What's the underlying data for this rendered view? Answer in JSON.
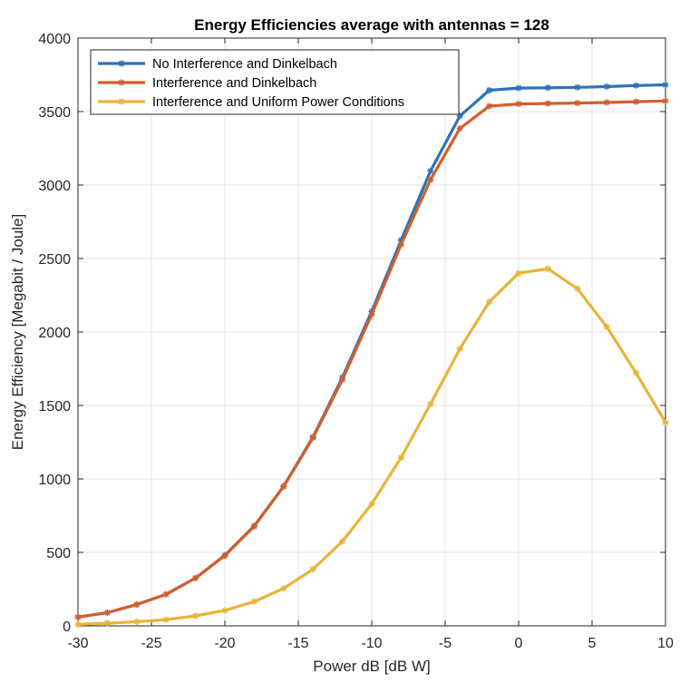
{
  "chart_data": {
    "type": "line",
    "title": "Energy Efficiencies average with antennas = 128",
    "xlabel": "Power dB [dB W]",
    "ylabel": "Energy Efficiency [Megabit / Joule]",
    "xlim": [
      -30,
      10
    ],
    "ylim": [
      0,
      4000
    ],
    "xticks": [
      -30,
      -25,
      -20,
      -15,
      -10,
      -5,
      0,
      5,
      10
    ],
    "yticks": [
      0,
      500,
      1000,
      1500,
      2000,
      2500,
      3000,
      3500,
      4000
    ],
    "grid": true,
    "legend_position": "top-left",
    "x": [
      -30,
      -28,
      -26,
      -24,
      -22,
      -20,
      -18,
      -16,
      -14,
      -12,
      -10,
      -8,
      -6,
      -4,
      -2,
      0,
      2,
      4,
      6,
      8,
      10
    ],
    "series": [
      {
        "name": "No Interference and Dinkelbach",
        "color": "#2E72B8",
        "marker": "asterisk",
        "values": [
          60,
          90,
          145,
          215,
          325,
          480,
          680,
          950,
          1285,
          1690,
          2140,
          2625,
          3095,
          3470,
          3645,
          3660,
          3662,
          3665,
          3670,
          3677,
          3682
        ]
      },
      {
        "name": "Interference and Dinkelbach",
        "color": "#D35F2B",
        "marker": "asterisk",
        "values": [
          60,
          90,
          145,
          215,
          325,
          478,
          678,
          948,
          1280,
          1675,
          2120,
          2595,
          3035,
          3385,
          3537,
          3552,
          3555,
          3558,
          3562,
          3567,
          3572
        ]
      },
      {
        "name": "Interference and Uniform Power Conditions",
        "color": "#E8B43A",
        "marker": "asterisk",
        "values": [
          10,
          18,
          28,
          42,
          68,
          105,
          165,
          255,
          385,
          575,
          830,
          1145,
          1510,
          1885,
          2205,
          2400,
          2430,
          2295,
          2035,
          1720,
          1385
        ]
      }
    ]
  }
}
